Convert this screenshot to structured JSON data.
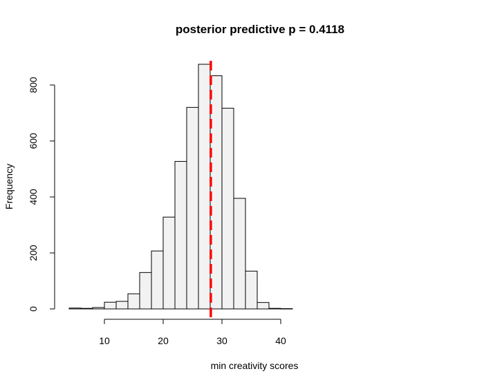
{
  "chart_data": {
    "type": "bar",
    "title": "posterior predictive p = 0.4118",
    "xlabel": "min creativity scores",
    "ylabel": "Frequency",
    "bin_edges": [
      4,
      6,
      8,
      10,
      12,
      14,
      16,
      18,
      20,
      22,
      24,
      26,
      28,
      30,
      32,
      34,
      36,
      38,
      40,
      42
    ],
    "values": [
      3,
      2,
      5,
      24,
      27,
      54,
      130,
      207,
      328,
      527,
      720,
      874,
      833,
      717,
      395,
      135,
      23,
      2,
      1
    ],
    "x_ticks": [
      10,
      20,
      30,
      40
    ],
    "y_ticks": [
      0,
      200,
      400,
      600,
      800
    ],
    "xlim": [
      4,
      42
    ],
    "ylim": [
      0,
      874
    ],
    "reference_line": {
      "x": 28.1,
      "color": "#ff0000",
      "style": "dashed"
    },
    "bar_fill": "#f2f2f2",
    "grid": false
  }
}
